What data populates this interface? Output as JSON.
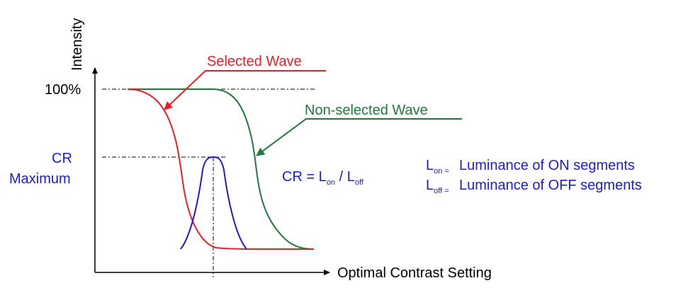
{
  "axes": {
    "y_label": "Intensity",
    "x_label": "Optimal Contrast Setting",
    "y_tick_top": "100%",
    "cr_label_line1": "CR",
    "cr_label_line2": "Maximum"
  },
  "annotations": {
    "selected_wave": "Selected Wave",
    "non_selected_wave": "Non-selected Wave"
  },
  "formula": {
    "prefix": "CR = L",
    "sub_on": "on",
    "middle": " / L",
    "sub_off": "off"
  },
  "legend": {
    "on": {
      "symbol": "L",
      "sub": "on =",
      "text": "Luminance of ON segments"
    },
    "off": {
      "symbol": "L",
      "sub": "off =",
      "text": "Luminance of OFF segments"
    }
  },
  "colors": {
    "selected": "#ee1c25",
    "non_selected": "#1f7a3a",
    "cr_curve": "#1c1cd6",
    "text_blue": "#1c1cd6",
    "axis": "#000000"
  }
}
